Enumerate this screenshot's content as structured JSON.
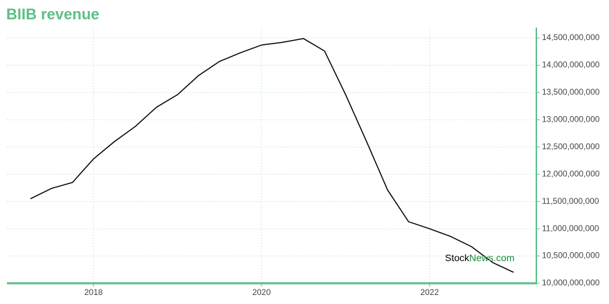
{
  "chart_data": {
    "type": "line",
    "title": "BIIB revenue",
    "x": [
      2017.25,
      2017.5,
      2017.75,
      2018,
      2018.25,
      2018.5,
      2018.75,
      2019,
      2019.25,
      2019.5,
      2019.75,
      2020,
      2020.25,
      2020.5,
      2020.75,
      2021,
      2021.25,
      2021.5,
      2021.75,
      2022,
      2022.25,
      2022.5,
      2022.75,
      2023
    ],
    "series": [
      {
        "name": "Revenue",
        "color": "#000000",
        "values": [
          11550000000,
          11740000000,
          11850000000,
          12280000000,
          12600000000,
          12880000000,
          13230000000,
          13460000000,
          13810000000,
          14070000000,
          14230000000,
          14370000000,
          14420000000,
          14490000000,
          14260000000,
          13460000000,
          12600000000,
          11710000000,
          11130000000,
          11000000000,
          10860000000,
          10670000000,
          10380000000,
          10200000000
        ]
      }
    ],
    "xlim": [
      2016.97,
      2023.27
    ],
    "xticks": [
      2018,
      2020,
      2022
    ],
    "ylim": [
      10000000000,
      14690000000
    ],
    "yticks": [
      {
        "value": 10000000000,
        "label": "10,000,000,000"
      },
      {
        "value": 10500000000,
        "label": "10,500,000,000"
      },
      {
        "value": 11000000000,
        "label": "11,000,000,000"
      },
      {
        "value": 11500000000,
        "label": "11,500,000,000"
      },
      {
        "value": 12000000000,
        "label": "12,000,000,000"
      },
      {
        "value": 12500000000,
        "label": "12,500,000,000"
      },
      {
        "value": 13000000000,
        "label": "13,000,000,000"
      },
      {
        "value": 13500000000,
        "label": "13,500,000,000"
      },
      {
        "value": 14000000000,
        "label": "14,000,000,000"
      },
      {
        "value": 14500000000,
        "label": "14,500,000,000"
      }
    ],
    "grid": true,
    "axis_color": "#5cbf84",
    "watermark": [
      "Stock",
      "News.com"
    ]
  }
}
